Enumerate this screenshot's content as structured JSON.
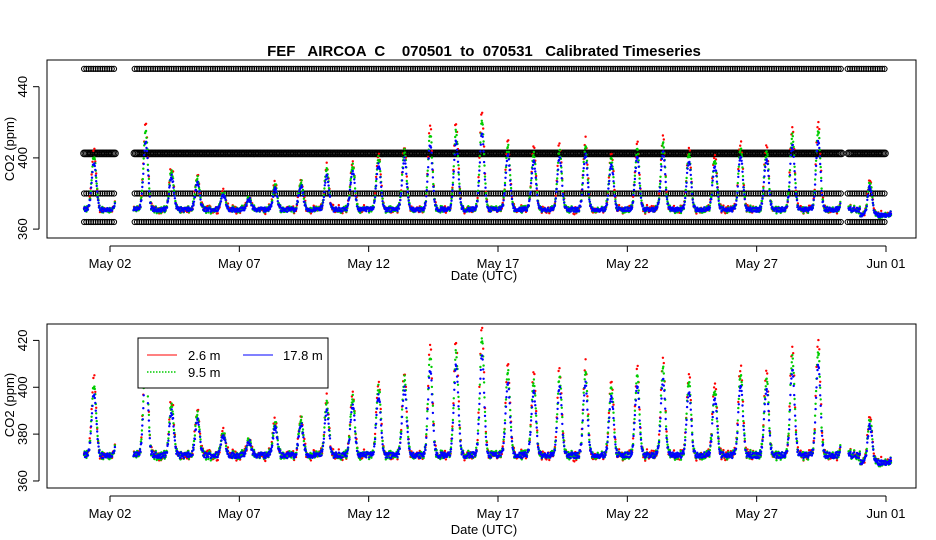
{
  "figure_title": "FEF   AIRCOA  C    070501  to  070531   Calibrated Timeseries",
  "colors": {
    "s1": "#ff0000",
    "s2": "#00cc00",
    "s3": "#0000ff",
    "axis": "#000000",
    "flag": "#000000"
  },
  "chart_data": [
    {
      "type": "scatter",
      "title": "FEF   AIRCOA  C    070501  to  070531   Calibrated Timeseries",
      "xlabel": "Date (UTC)",
      "ylabel": "CO2 (ppm)",
      "x_unit": "day of May 2007",
      "xlim": [
        30.8,
        62.5
      ],
      "ylim": [
        355,
        455
      ],
      "x_ticks": [
        {
          "x": 32,
          "label": "May 02"
        },
        {
          "x": 37,
          "label": "May 07"
        },
        {
          "x": 42,
          "label": "May 12"
        },
        {
          "x": 47,
          "label": "May 17"
        },
        {
          "x": 52,
          "label": "May 22"
        },
        {
          "x": 57,
          "label": "May 27"
        },
        {
          "x": 62,
          "label": "Jun 01"
        }
      ],
      "y_ticks": [
        {
          "y": 360,
          "label": "360"
        },
        {
          "y": 400,
          "label": "400"
        },
        {
          "y": 440,
          "label": "440"
        }
      ],
      "flag_levels": [
        450,
        402.5,
        380,
        364
      ],
      "flag_gaps": [
        [
          32.2,
          32.9
        ],
        [
          60.3,
          60.5
        ]
      ],
      "series": [
        {
          "name": "2.6 m",
          "color": "#ff0000"
        },
        {
          "name": "9.5 m",
          "color": "#00cc00"
        },
        {
          "name": "17.8 m",
          "color": "#0000ff"
        }
      ],
      "daily_peak_ppm": [
        405,
        420,
        420,
        395,
        390,
        382,
        378,
        386,
        388,
        395,
        398,
        404,
        408,
        418,
        420,
        425,
        410,
        406,
        408,
        410,
        404,
        408,
        412,
        406,
        402,
        410,
        408,
        418,
        420,
        390,
        388
      ]
    },
    {
      "type": "scatter",
      "title": "",
      "xlabel": "Date (UTC)",
      "ylabel": "CO2 (ppm)",
      "x_unit": "day of May 2007",
      "xlim": [
        30.8,
        62.5
      ],
      "ylim": [
        357,
        427
      ],
      "x_ticks": [
        {
          "x": 32,
          "label": "May 02"
        },
        {
          "x": 37,
          "label": "May 07"
        },
        {
          "x": 42,
          "label": "May 12"
        },
        {
          "x": 47,
          "label": "May 17"
        },
        {
          "x": 52,
          "label": "May 22"
        },
        {
          "x": 57,
          "label": "May 27"
        },
        {
          "x": 62,
          "label": "Jun 01"
        }
      ],
      "y_ticks": [
        {
          "y": 360,
          "label": "360"
        },
        {
          "y": 380,
          "label": "380"
        },
        {
          "y": 400,
          "label": "400"
        },
        {
          "y": 420,
          "label": "420"
        }
      ],
      "series": [
        {
          "name": "2.6 m",
          "color": "#ff0000"
        },
        {
          "name": "9.5 m",
          "color": "#00cc00"
        },
        {
          "name": "17.8 m",
          "color": "#0000ff"
        }
      ],
      "legend_position": "top-left",
      "daily_peak_ppm": [
        405,
        420,
        420,
        395,
        390,
        382,
        378,
        386,
        388,
        395,
        398,
        404,
        408,
        418,
        420,
        425,
        410,
        406,
        408,
        410,
        404,
        408,
        412,
        406,
        402,
        410,
        408,
        418,
        420,
        390,
        388
      ]
    }
  ],
  "legend": {
    "items": [
      {
        "label": "2.6 m",
        "color": "#ff0000"
      },
      {
        "label": "9.5 m",
        "color": "#00cc00"
      },
      {
        "label": "17.8 m",
        "color": "#0000ff"
      }
    ]
  }
}
